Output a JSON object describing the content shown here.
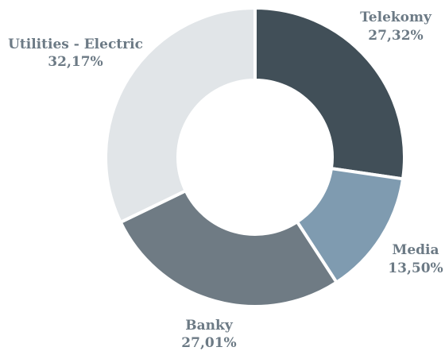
{
  "chart_data": {
    "type": "pie",
    "donut": true,
    "categories": [
      "Telekomy",
      "Media",
      "Banky",
      "Utilities - Electric"
    ],
    "values": [
      27.32,
      13.5,
      27.01,
      32.17
    ],
    "value_labels": [
      "27,32%",
      "13,50%",
      "27,01%",
      "32,17%"
    ],
    "colors": [
      "#414f58",
      "#7f9bb0",
      "#6f7b84",
      "#e1e5e8"
    ],
    "label_color": "#6c7a85",
    "legend": "none"
  }
}
